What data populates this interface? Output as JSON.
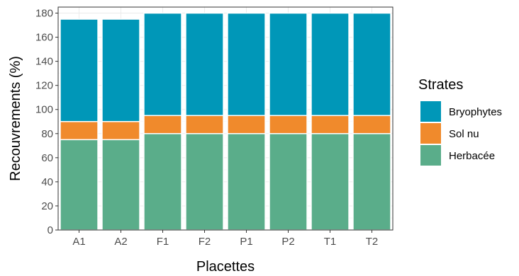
{
  "chart_data": {
    "type": "bar",
    "stacked": true,
    "xlabel": "Placettes",
    "ylabel": "Recouvrements (%)",
    "ylim": [
      0,
      185
    ],
    "yticks": [
      0,
      20,
      40,
      60,
      80,
      100,
      120,
      140,
      160,
      180
    ],
    "categories": [
      "A1",
      "A2",
      "F1",
      "F2",
      "P1",
      "P2",
      "T1",
      "T2"
    ],
    "series": [
      {
        "name": "Herbacée",
        "color": "#5aad8a",
        "values": [
          75,
          75,
          80,
          80,
          80,
          80,
          80,
          80
        ]
      },
      {
        "name": "Sol nu",
        "color": "#f08a2c",
        "values": [
          15,
          15,
          15,
          15,
          15,
          15,
          15,
          15
        ]
      },
      {
        "name": "Bryophytes",
        "color": "#0097b8",
        "values": [
          85,
          85,
          85,
          85,
          85,
          85,
          85,
          85
        ]
      }
    ],
    "legend": {
      "title": "Strates",
      "position": "right",
      "order": [
        "Bryophytes",
        "Sol nu",
        "Herbacée"
      ]
    },
    "grid": true,
    "panel_border": true
  }
}
